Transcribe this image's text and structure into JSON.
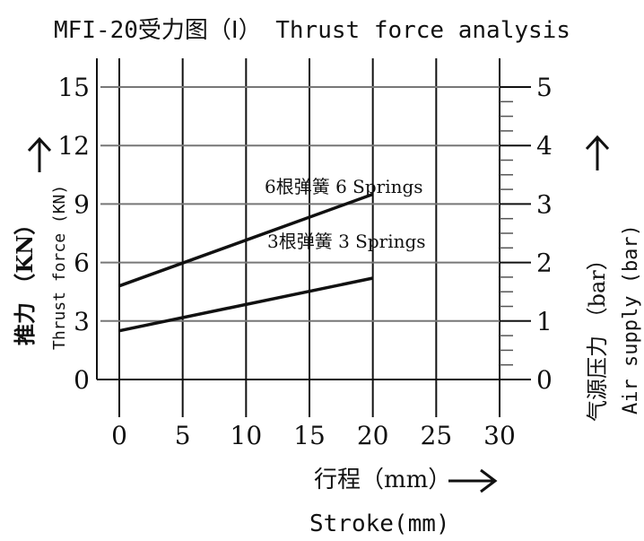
{
  "chart_data": {
    "type": "line",
    "title": "MFI-20受力图（Ⅰ） Thrust force analysis",
    "xlabel_cn": "行程（mm）",
    "xlabel_en": "Stroke(mm)",
    "ylabel_left_cn": "推力 （KN）",
    "ylabel_left_en": "Thrust force (KN)",
    "ylabel_right_cn": "气源压力 （bar）",
    "ylabel_right_en": "Air supply (bar)",
    "xlim": [
      0,
      30
    ],
    "ylim_left": [
      0,
      15
    ],
    "ylim_right": [
      0,
      5
    ],
    "x_ticks": [
      "0",
      "5",
      "10",
      "15",
      "20",
      "25",
      "30"
    ],
    "y_ticks_left": [
      "0",
      "3",
      "6",
      "9",
      "12",
      "15"
    ],
    "y_ticks_right": [
      "0",
      "1",
      "2",
      "3",
      "4",
      "5"
    ],
    "grid": true,
    "series": [
      {
        "name": "6根弹簧 6 Springs",
        "x": [
          0,
          20
        ],
        "y": [
          4.8,
          9.5
        ]
      },
      {
        "name": "3根弹簧 3 Springs",
        "x": [
          0,
          20
        ],
        "y": [
          2.5,
          5.2
        ]
      }
    ]
  }
}
